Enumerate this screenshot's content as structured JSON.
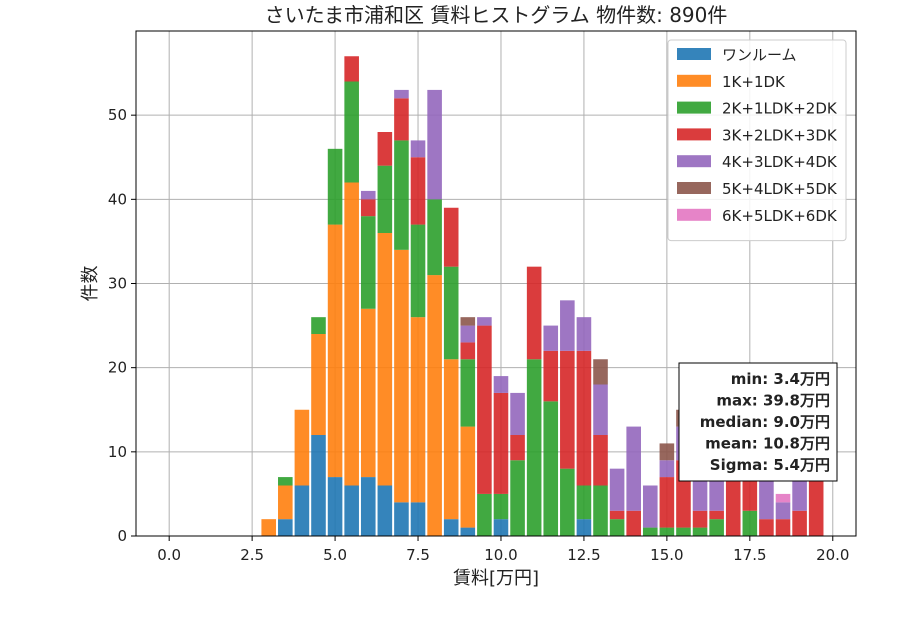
{
  "chart_data": {
    "type": "bar",
    "stacked": true,
    "title": "さいたま市浦和区 賃料ヒストグラム  物件数: 890件",
    "xlabel": "賃料[万円]",
    "ylabel": "件数",
    "xlim": [
      -1.0,
      20.7
    ],
    "ylim": [
      0,
      60
    ],
    "xticks": [
      0.0,
      2.5,
      5.0,
      7.5,
      10.0,
      12.5,
      15.0,
      17.5,
      20.0
    ],
    "xtick_labels": [
      "0.0",
      "2.5",
      "5.0",
      "7.5",
      "10.0",
      "12.5",
      "15.0",
      "17.5",
      "20.0"
    ],
    "yticks": [
      0,
      10,
      20,
      30,
      40,
      50
    ],
    "ytick_labels": [
      "0",
      "10",
      "20",
      "30",
      "40",
      "50"
    ],
    "grid": true,
    "legend_position": "top-right",
    "bin_width": 0.5,
    "x": [
      3.0,
      3.5,
      4.0,
      4.5,
      5.0,
      5.5,
      6.0,
      6.5,
      7.0,
      7.5,
      8.0,
      8.5,
      9.0,
      9.5,
      10.0,
      10.5,
      11.0,
      11.5,
      12.0,
      12.5,
      13.0,
      13.5,
      14.0,
      14.5,
      15.0,
      15.5,
      16.0,
      16.5,
      17.0,
      17.5,
      18.0,
      18.5,
      19.0,
      19.5
    ],
    "series": [
      {
        "name": "ワンルーム",
        "color": "#1f77b4",
        "values": [
          0,
          2,
          6,
          12,
          7,
          6,
          7,
          6,
          4,
          4,
          0,
          2,
          1,
          0,
          2,
          0,
          0,
          0,
          0,
          2,
          0,
          0,
          0,
          0,
          0,
          0,
          0,
          0,
          0,
          0,
          0,
          0,
          0,
          0
        ]
      },
      {
        "name": "1K+1DK",
        "color": "#ff7f0e",
        "values": [
          2,
          4,
          9,
          12,
          30,
          36,
          20,
          30,
          30,
          22,
          31,
          19,
          12,
          0,
          0,
          0,
          0,
          0,
          0,
          0,
          0,
          0,
          0,
          0,
          0,
          0,
          0,
          0,
          0,
          0,
          0,
          0,
          0,
          0
        ]
      },
      {
        "name": "2K+1LDK+2DK",
        "color": "#2ca02c",
        "values": [
          0,
          1,
          0,
          2,
          9,
          12,
          11,
          8,
          13,
          11,
          9,
          11,
          8,
          5,
          3,
          9,
          21,
          16,
          8,
          4,
          6,
          2,
          0,
          1,
          1,
          1,
          1,
          2,
          0,
          3,
          0,
          0,
          0,
          0
        ]
      },
      {
        "name": "3K+2LDK+3DK",
        "color": "#d62728",
        "values": [
          0,
          0,
          0,
          0,
          0,
          3,
          2,
          4,
          5,
          8,
          0,
          7,
          2,
          20,
          12,
          3,
          11,
          6,
          14,
          16,
          6,
          1,
          3,
          0,
          6,
          8,
          2,
          1,
          7,
          6,
          2,
          2,
          3,
          7
        ]
      },
      {
        "name": "4K+3LDK+4DK",
        "color": "#9467bd",
        "values": [
          0,
          0,
          0,
          0,
          0,
          0,
          1,
          0,
          1,
          2,
          13,
          0,
          2,
          1,
          2,
          5,
          0,
          3,
          6,
          4,
          6,
          5,
          10,
          5,
          2,
          4,
          4,
          5,
          5,
          6,
          5,
          2,
          9,
          8
        ]
      },
      {
        "name": "5K+4LDK+5DK",
        "color": "#8c564b",
        "values": [
          0,
          0,
          0,
          0,
          0,
          0,
          0,
          0,
          0,
          0,
          0,
          0,
          1,
          0,
          0,
          0,
          0,
          0,
          0,
          0,
          3,
          0,
          0,
          0,
          2,
          2,
          1,
          1,
          0,
          1,
          0,
          0,
          0,
          1
        ]
      },
      {
        "name": "6K+5LDK+6DK",
        "color": "#e377c2",
        "values": [
          0,
          0,
          0,
          0,
          0,
          0,
          0,
          0,
          0,
          0,
          0,
          0,
          0,
          0,
          0,
          0,
          0,
          0,
          0,
          0,
          0,
          0,
          0,
          0,
          0,
          0,
          0,
          0,
          0,
          0,
          0,
          1,
          0,
          0
        ]
      }
    ],
    "stats_box": {
      "position": "right",
      "lines": [
        "min: 3.4万円",
        "max: 39.8万円",
        "median: 9.0万円",
        "mean: 10.8万円",
        "Sigma: 5.4万円"
      ]
    }
  }
}
